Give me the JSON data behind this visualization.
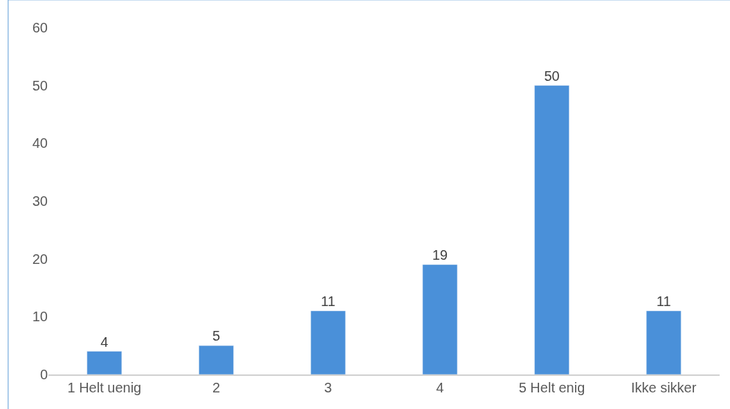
{
  "chart_data": {
    "type": "bar",
    "categories": [
      "1 Helt uenig",
      "2",
      "3",
      "4",
      "5 Helt enig",
      "Ikke sikker"
    ],
    "values": [
      4,
      5,
      11,
      19,
      50,
      11
    ],
    "color": "#4a90d9",
    "ylim": [
      0,
      60
    ],
    "yticks": [
      0,
      10,
      20,
      30,
      40,
      50,
      60
    ],
    "data_labels": true,
    "legend": false
  }
}
